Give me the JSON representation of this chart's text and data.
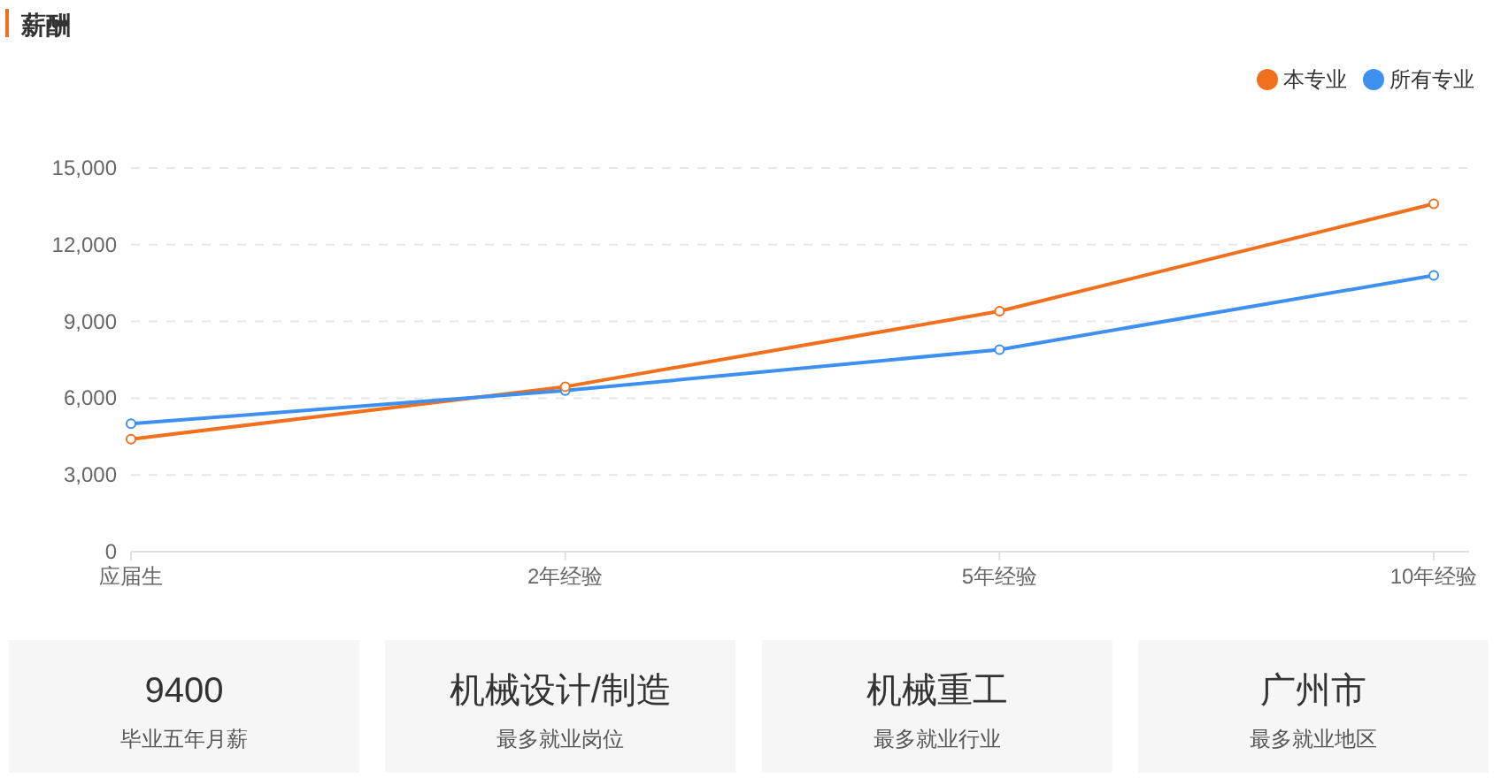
{
  "chart_data": [
    {
      "type": "line",
      "title": "薪酬",
      "categories": [
        "应届生",
        "2年经验",
        "5年经验",
        "10年经验"
      ],
      "series": [
        {
          "name": "本专业",
          "color": "#f0701e",
          "values": [
            4400,
            6450,
            9400,
            13600
          ]
        },
        {
          "name": "所有专业",
          "color": "#3d8ff0",
          "values": [
            5000,
            6300,
            7900,
            10800
          ]
        }
      ],
      "ylim": [
        0,
        15000
      ],
      "yticks": [
        {
          "value": 0,
          "label": "0"
        },
        {
          "value": 3000,
          "label": "3,000"
        },
        {
          "value": 6000,
          "label": "6,000"
        },
        {
          "value": 9000,
          "label": "9,000"
        },
        {
          "value": 12000,
          "label": "12,000"
        },
        {
          "value": 15000,
          "label": "15,000"
        }
      ],
      "grid": "y",
      "legend": "top right",
      "marker": "circle",
      "line_style": "solid"
    },
    {
      "type": "other",
      "annotations": [
        "9400",
        "毕业五年月薪",
        "机械设计/制造",
        "最多就业岗位",
        "机械重工",
        "最多就业行业",
        "广州市",
        "最多就业地区"
      ]
    }
  ]
}
